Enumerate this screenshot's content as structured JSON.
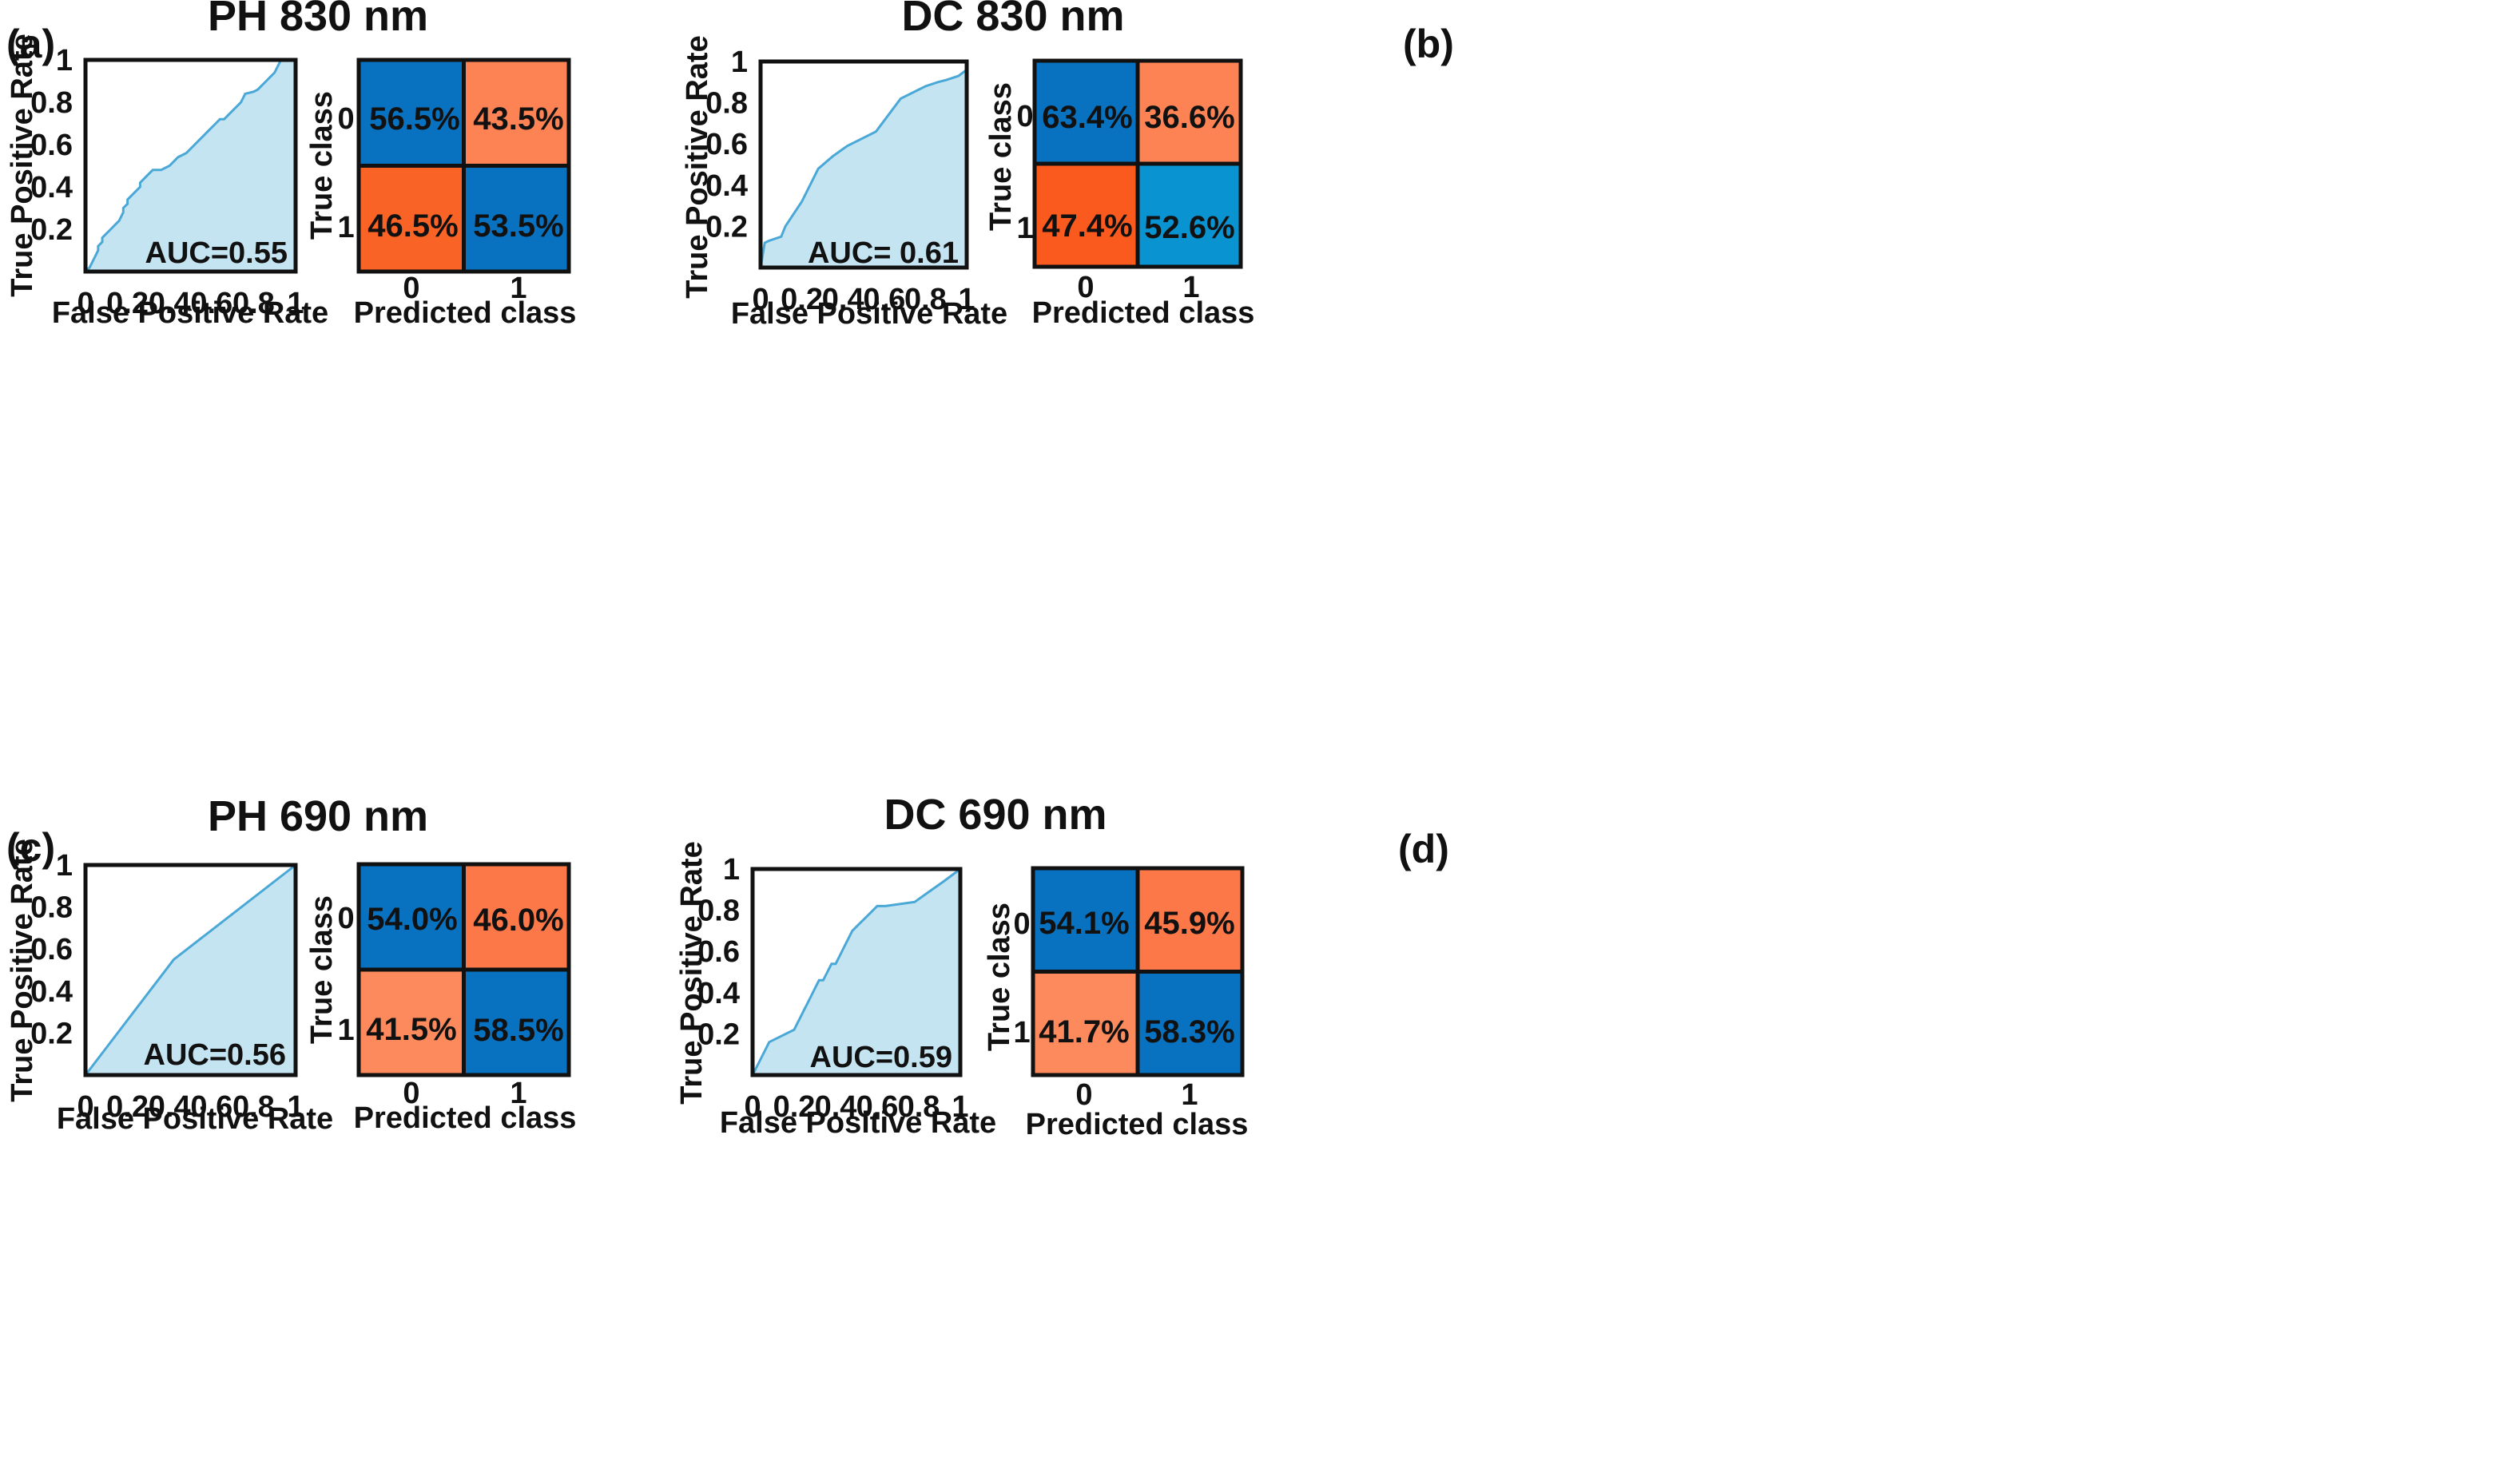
{
  "chart_data": [
    {
      "type": "roc_with_confusion_matrix",
      "panel_label": "(a)",
      "title": "PH 830 nm",
      "roc": {
        "title": "",
        "xlabel": "False Positive Rate",
        "ylabel": "True Positive Rate",
        "xlim": [
          0,
          1
        ],
        "ylim": [
          0,
          1
        ],
        "xticks": [
          "0",
          "0.2",
          "0.4",
          "0.6",
          "0.8",
          "1"
        ],
        "yticks": [
          "0.2",
          "0.4",
          "0.6",
          "0.8",
          "1"
        ],
        "x": [
          0.0,
          0.02,
          0.03,
          0.05,
          0.06,
          0.06,
          0.08,
          0.08,
          0.1,
          0.12,
          0.14,
          0.16,
          0.18,
          0.18,
          0.2,
          0.2,
          0.22,
          0.24,
          0.26,
          0.26,
          0.28,
          0.3,
          0.32,
          0.34,
          0.36,
          0.4,
          0.42,
          0.44,
          0.48,
          0.5,
          0.52,
          0.54,
          0.56,
          0.58,
          0.6,
          0.62,
          0.64,
          0.66,
          0.68,
          0.7,
          0.72,
          0.74,
          0.76,
          0.8,
          0.82,
          0.84,
          0.86,
          0.88,
          0.9,
          0.91,
          0.92,
          0.93,
          0.94,
          0.95,
          1.0
        ],
        "y": [
          0.0,
          0.02,
          0.04,
          0.08,
          0.1,
          0.12,
          0.14,
          0.16,
          0.18,
          0.2,
          0.22,
          0.24,
          0.28,
          0.3,
          0.32,
          0.34,
          0.36,
          0.38,
          0.4,
          0.42,
          0.44,
          0.46,
          0.48,
          0.48,
          0.48,
          0.5,
          0.52,
          0.54,
          0.56,
          0.58,
          0.6,
          0.62,
          0.64,
          0.66,
          0.68,
          0.7,
          0.72,
          0.72,
          0.74,
          0.76,
          0.78,
          0.8,
          0.84,
          0.85,
          0.86,
          0.88,
          0.9,
          0.92,
          0.94,
          0.96,
          0.98,
          1.0,
          1.0,
          1.0,
          1.0
        ],
        "auc_label": "AUC=0.55"
      },
      "confusion_matrix": {
        "xlabel": "Predicted class",
        "ylabel": "True class",
        "row_labels": [
          "0",
          "1"
        ],
        "col_labels": [
          "0",
          "1"
        ],
        "cells": [
          [
            "56.5%",
            "43.5%"
          ],
          [
            "46.5%",
            "53.5%"
          ]
        ],
        "colors": [
          [
            "#0872c0",
            "#fd8354"
          ],
          [
            "#fa6326",
            "#0872c0"
          ]
        ]
      }
    },
    {
      "type": "roc_with_confusion_matrix",
      "panel_label": "(b)",
      "title": "DC 830 nm",
      "roc": {
        "title": "",
        "xlabel": "False Positive Rate",
        "ylabel": "True Positive Rate",
        "xlim": [
          0,
          1
        ],
        "ylim": [
          0,
          1
        ],
        "xticks": [
          "0",
          "0.2",
          "0.4",
          "0.6",
          "0.8",
          "1"
        ],
        "yticks": [
          "0.2",
          "0.4",
          "0.6",
          "0.8",
          "1"
        ],
        "x": [
          0.0,
          0.02,
          0.04,
          0.1,
          0.12,
          0.2,
          0.28,
          0.35,
          0.42,
          0.56,
          0.68,
          0.76,
          0.8,
          0.86,
          0.9,
          0.96,
          1.0
        ],
        "y": [
          0.0,
          0.12,
          0.13,
          0.15,
          0.2,
          0.32,
          0.48,
          0.54,
          0.59,
          0.66,
          0.82,
          0.86,
          0.88,
          0.9,
          0.91,
          0.93,
          0.96
        ],
        "auc_label": "AUC= 0.61"
      },
      "confusion_matrix": {
        "xlabel": "Predicted class",
        "ylabel": "True class",
        "row_labels": [
          "0",
          "1"
        ],
        "col_labels": [
          "0",
          "1"
        ],
        "cells": [
          [
            "63.4%",
            "36.6%"
          ],
          [
            "47.4%",
            "52.6%"
          ]
        ],
        "colors": [
          [
            "#0872c0",
            "#fd8354"
          ],
          [
            "#fa5a1e",
            "#0994d1"
          ]
        ]
      }
    },
    {
      "type": "roc_with_confusion_matrix",
      "panel_label": "(c)",
      "title": "PH 690 nm",
      "roc": {
        "title": "",
        "xlabel": "False Positive Rate",
        "ylabel": "True Positive Rate",
        "xlim": [
          0,
          1
        ],
        "ylim": [
          0,
          1
        ],
        "xticks": [
          "0",
          "0.2",
          "0.4",
          "0.6",
          "0.8",
          "1"
        ],
        "yticks": [
          "0.2",
          "0.4",
          "0.6",
          "0.8",
          "1"
        ],
        "x": [
          0.0,
          0.42,
          1.0
        ],
        "y": [
          0.0,
          0.55,
          1.0
        ],
        "auc_label": "AUC=0.56"
      },
      "confusion_matrix": {
        "xlabel": "Predicted class",
        "ylabel": "True class",
        "row_labels": [
          "0",
          "1"
        ],
        "col_labels": [
          "0",
          "1"
        ],
        "cells": [
          [
            "54.0%",
            "46.0%"
          ],
          [
            "41.5%",
            "58.5%"
          ]
        ],
        "colors": [
          [
            "#0872c0",
            "#fd7848"
          ],
          [
            "#fd8a5c",
            "#0872c0"
          ]
        ]
      }
    },
    {
      "type": "roc_with_confusion_matrix",
      "panel_label": "(d)",
      "title": "DC 690 nm",
      "roc": {
        "title": "",
        "xlabel": "False Positive Rate",
        "ylabel": "True Positive Rate",
        "xlim": [
          0,
          1
        ],
        "ylim": [
          0,
          1
        ],
        "xticks": [
          "0",
          "0.2",
          "0.4",
          "0.6",
          "0.8",
          "1"
        ],
        "yticks": [
          "0.2",
          "0.4",
          "0.6",
          "0.8",
          "1"
        ],
        "x": [
          0.0,
          0.08,
          0.2,
          0.22,
          0.24,
          0.26,
          0.28,
          0.3,
          0.32,
          0.34,
          0.36,
          0.38,
          0.4,
          0.42,
          0.44,
          0.46,
          0.48,
          0.5,
          0.52,
          0.54,
          0.56,
          0.58,
          0.6,
          0.64,
          0.78,
          0.85,
          0.92,
          1.0
        ],
        "y": [
          0.0,
          0.16,
          0.22,
          0.26,
          0.3,
          0.34,
          0.38,
          0.42,
          0.46,
          0.46,
          0.5,
          0.54,
          0.54,
          0.58,
          0.62,
          0.66,
          0.7,
          0.72,
          0.74,
          0.76,
          0.78,
          0.8,
          0.82,
          0.82,
          0.84,
          0.89,
          0.94,
          1.0
        ],
        "auc_label": "AUC=0.59"
      },
      "confusion_matrix": {
        "xlabel": "Predicted class",
        "ylabel": "True class",
        "row_labels": [
          "0",
          "1"
        ],
        "col_labels": [
          "0",
          "1"
        ],
        "cells": [
          [
            "54.1%",
            "45.9%"
          ],
          [
            "41.7%",
            "58.3%"
          ]
        ],
        "colors": [
          [
            "#0872c0",
            "#fd7848"
          ],
          [
            "#fd8a5c",
            "#0872c0"
          ]
        ]
      }
    }
  ],
  "style": {
    "roc_fill": "#c5e4f2",
    "roc_line": "#4aa8d6",
    "frame": "#111111"
  }
}
